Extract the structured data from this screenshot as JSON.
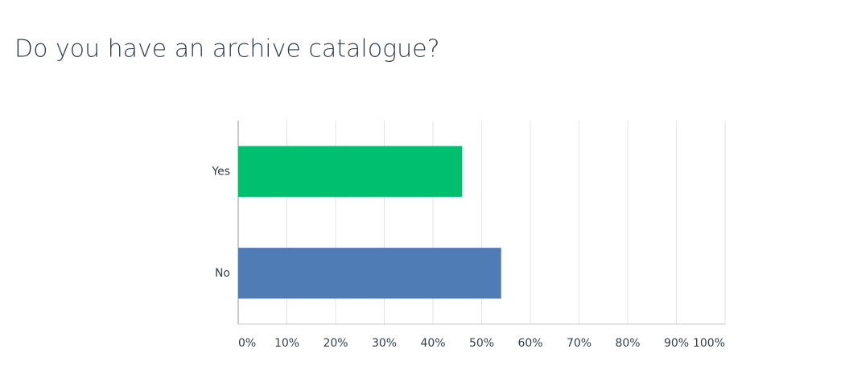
{
  "chart_data": {
    "type": "bar",
    "orientation": "horizontal",
    "title": "Do you have an archive catalogue?",
    "categories": [
      "Yes",
      "No"
    ],
    "values": [
      46,
      54
    ],
    "colors": [
      "#00bf6f",
      "#507cb6"
    ],
    "xlim": [
      0,
      100
    ],
    "xticks": [
      {
        "value": 0,
        "label": "0%"
      },
      {
        "value": 10,
        "label": "10%"
      },
      {
        "value": 20,
        "label": "20%"
      },
      {
        "value": 30,
        "label": "30%"
      },
      {
        "value": 40,
        "label": "40%"
      },
      {
        "value": 50,
        "label": "50%"
      },
      {
        "value": 60,
        "label": "60%"
      },
      {
        "value": 70,
        "label": "70%"
      },
      {
        "value": 80,
        "label": "80%"
      },
      {
        "value": 90,
        "label": "90%"
      },
      {
        "value": 100,
        "label": "100%"
      }
    ],
    "grid": true
  }
}
